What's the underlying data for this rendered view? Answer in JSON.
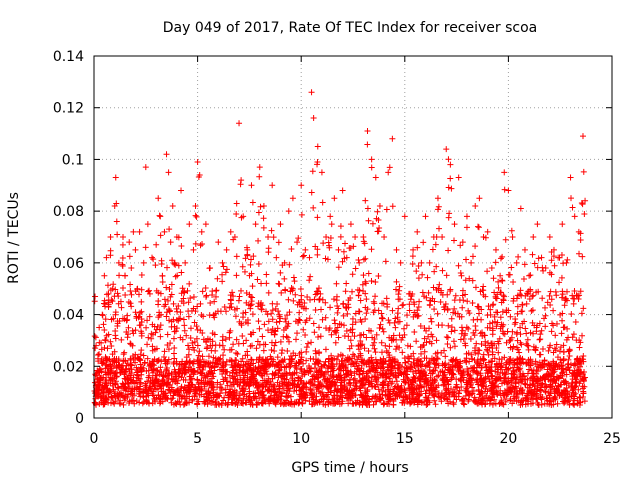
{
  "chart_data": {
    "type": "scatter",
    "title": "Day 049 of 2017, Rate Of TEC Index for receiver scoa",
    "xlabel": "GPS time / hours",
    "ylabel": "ROTI / TECUs",
    "xlim": [
      0,
      25
    ],
    "ylim": [
      0,
      0.14
    ],
    "xticks": [
      0,
      5,
      10,
      15,
      20,
      25
    ],
    "xtick_labels": [
      "0",
      "5",
      "10",
      "15",
      "20",
      "25"
    ],
    "yticks": [
      0,
      0.02,
      0.04,
      0.06,
      0.08,
      0.1,
      0.12,
      0.14
    ],
    "ytick_labels": [
      "0",
      "0.02",
      "0.04",
      "0.06",
      "0.08",
      "0.1",
      "0.12",
      "0.14"
    ],
    "grid": true,
    "marker": "+",
    "series": [
      {
        "color": "#ff0000",
        "x": [
          0.05,
          0.1,
          0.15,
          0.2,
          0.25,
          0.3,
          0.4,
          0.5,
          0.55,
          0.6,
          0.7,
          0.8,
          0.9,
          1.0,
          1.05,
          1.1,
          1.2,
          1.3,
          1.4,
          1.5,
          1.6,
          1.7,
          1.8,
          1.9,
          2.0,
          2.1,
          2.2,
          2.4,
          2.5,
          2.6,
          2.7,
          2.8,
          3.0,
          3.1,
          3.2,
          3.3,
          3.4,
          3.5,
          3.6,
          3.7,
          3.8,
          3.9,
          4.0,
          4.2,
          4.4,
          4.6,
          4.8,
          4.9,
          5.0,
          5.1,
          5.2,
          5.4,
          5.6,
          5.8,
          6.0,
          6.2,
          6.4,
          6.6,
          6.8,
          7.0,
          7.1,
          7.2,
          7.4,
          7.6,
          7.8,
          8.0,
          8.2,
          8.4,
          8.6,
          8.8,
          9.0,
          9.2,
          9.4,
          9.6,
          9.8,
          10.0,
          10.2,
          10.4,
          10.5,
          10.6,
          10.8,
          11.0,
          11.2,
          11.4,
          11.6,
          11.8,
          12.0,
          12.2,
          12.4,
          12.6,
          12.8,
          13.0,
          13.2,
          13.4,
          13.6,
          13.8,
          14.0,
          14.2,
          14.4,
          14.6,
          14.8,
          15.0,
          15.2,
          15.4,
          15.6,
          15.8,
          16.0,
          16.2,
          16.4,
          16.6,
          16.8,
          17.0,
          17.2,
          17.4,
          17.6,
          17.8,
          18.0,
          18.2,
          18.4,
          18.6,
          18.8,
          19.0,
          19.2,
          19.4,
          19.6,
          19.8,
          20.0,
          20.2,
          20.4,
          20.6,
          20.8,
          21.0,
          21.2,
          21.4,
          21.6,
          21.8,
          22.0,
          22.2,
          22.4,
          22.6,
          22.8,
          23.0,
          23.2,
          23.4,
          23.6,
          23.7
        ],
        "y": [
          0.047,
          0.028,
          0.012,
          0.022,
          0.035,
          0.015,
          0.04,
          0.055,
          0.03,
          0.062,
          0.048,
          0.07,
          0.05,
          0.082,
          0.093,
          0.076,
          0.06,
          0.045,
          0.07,
          0.055,
          0.038,
          0.068,
          0.058,
          0.072,
          0.065,
          0.05,
          0.072,
          0.06,
          0.097,
          0.075,
          0.048,
          0.062,
          0.067,
          0.085,
          0.078,
          0.055,
          0.072,
          0.102,
          0.095,
          0.068,
          0.082,
          0.06,
          0.07,
          0.088,
          0.06,
          0.075,
          0.065,
          0.082,
          0.099,
          0.094,
          0.072,
          0.075,
          0.058,
          0.045,
          0.068,
          0.06,
          0.065,
          0.072,
          0.07,
          0.114,
          0.092,
          0.078,
          0.065,
          0.09,
          0.075,
          0.097,
          0.082,
          0.07,
          0.09,
          0.062,
          0.075,
          0.06,
          0.08,
          0.085,
          0.068,
          0.09,
          0.065,
          0.062,
          0.126,
          0.116,
          0.105,
          0.095,
          0.07,
          0.078,
          0.085,
          0.065,
          0.088,
          0.062,
          0.075,
          0.07,
          0.06,
          0.07,
          0.111,
          0.1,
          0.093,
          0.082,
          0.07,
          0.095,
          0.108,
          0.065,
          0.06,
          0.078,
          0.048,
          0.065,
          0.072,
          0.06,
          0.078,
          0.06,
          0.07,
          0.085,
          0.07,
          0.104,
          0.098,
          0.075,
          0.093,
          0.068,
          0.078,
          0.06,
          0.082,
          0.085,
          0.07,
          0.072,
          0.058,
          0.065,
          0.055,
          0.095,
          0.088,
          0.07,
          0.06,
          0.081,
          0.065,
          0.055,
          0.07,
          0.075,
          0.062,
          0.058,
          0.07,
          0.065,
          0.062,
          0.075,
          0.06,
          0.093,
          0.078,
          0.072,
          0.109,
          0.084
        ],
        "description": "Envelope of peak ROTI values; dense cloud of points fills from ~0.005 up to these peaks across 0-23.7 h"
      }
    ]
  }
}
